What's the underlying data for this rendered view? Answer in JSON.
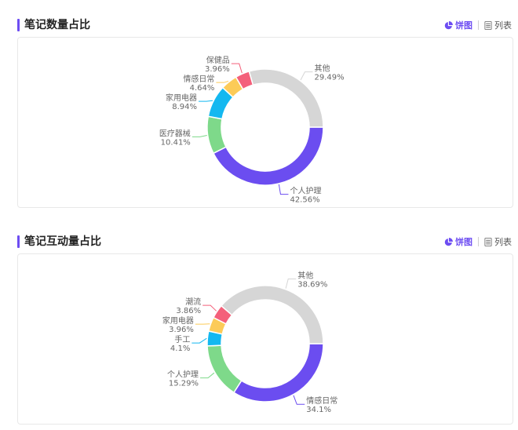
{
  "icons": {
    "pie": "pie-chart-icon",
    "list": "list-icon"
  },
  "sections": [
    {
      "title": "笔记数量占比",
      "view_switch": {
        "pie_label": "饼图",
        "list_label": "列表",
        "active": "pie"
      }
    },
    {
      "title": "笔记互动量占比",
      "view_switch": {
        "pie_label": "饼图",
        "list_label": "列表",
        "active": "pie"
      }
    }
  ],
  "chart_data": [
    {
      "type": "pie",
      "style": "donut",
      "unit": "%",
      "slices": [
        {
          "name": "个人护理",
          "value": 42.56,
          "label": "42.56%",
          "color": "#6b4df0"
        },
        {
          "name": "医疗器械",
          "value": 10.41,
          "label": "10.41%",
          "color": "#7ed98a"
        },
        {
          "name": "家用电器",
          "value": 8.94,
          "label": "8.94%",
          "color": "#14b8f0"
        },
        {
          "name": "情感日常",
          "value": 4.64,
          "label": "4.64%",
          "color": "#fccb58"
        },
        {
          "name": "保健品",
          "value": 3.96,
          "label": "3.96%",
          "color": "#f4607a"
        },
        {
          "name": "其他",
          "value": 29.49,
          "label": "29.49%",
          "color": "#d6d6d6"
        }
      ]
    },
    {
      "type": "pie",
      "style": "donut",
      "unit": "%",
      "slices": [
        {
          "name": "情感日常",
          "value": 34.1,
          "label": "34.1%",
          "color": "#6b4df0"
        },
        {
          "name": "个人护理",
          "value": 15.29,
          "label": "15.29%",
          "color": "#7ed98a"
        },
        {
          "name": "手工",
          "value": 4.1,
          "label": "4.1%",
          "color": "#14b8f0"
        },
        {
          "name": "家用电器",
          "value": 3.96,
          "label": "3.96%",
          "color": "#fccb58"
        },
        {
          "name": "潮流",
          "value": 3.86,
          "label": "3.86%",
          "color": "#f4607a"
        },
        {
          "name": "其他",
          "value": 38.69,
          "label": "38.69%",
          "color": "#d6d6d6"
        }
      ]
    }
  ]
}
